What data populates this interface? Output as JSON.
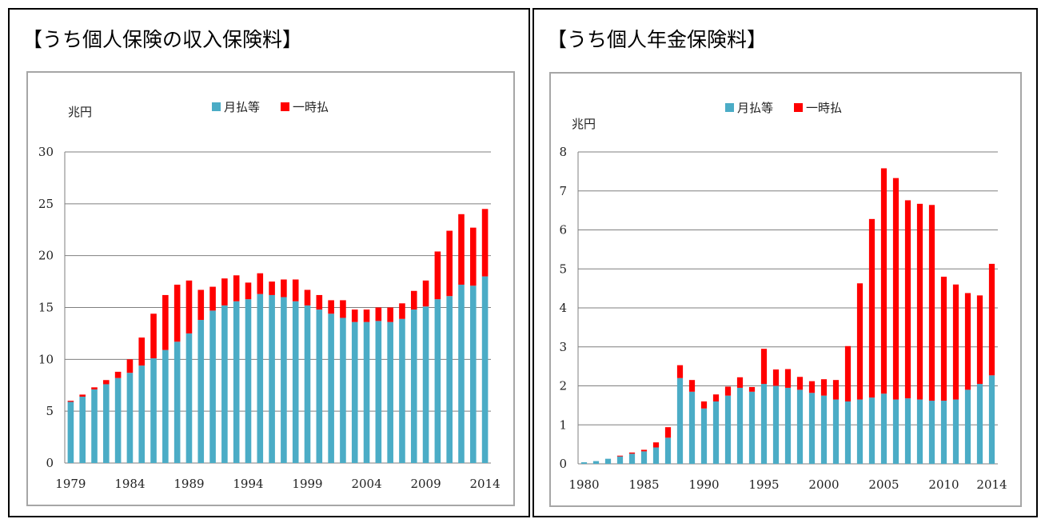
{
  "colors": {
    "monthly": "#4bacc6",
    "lump": "#ff0000",
    "grid": "#7f7f7f",
    "axis": "#7f7f7f"
  },
  "charts": [
    {
      "title": "【うち個人保険の収入保険料】",
      "unit": "兆円"
    },
    {
      "title": "【うち個人年金保険料】",
      "unit": "兆円"
    }
  ],
  "chart_data": [
    {
      "type": "bar",
      "stacked": true,
      "title": "【うち個人保険の収入保険料】",
      "ylabel": "兆円",
      "legend": [
        "月払等",
        "一時払"
      ],
      "legend_position": "top",
      "ylim": [
        0,
        30
      ],
      "yticks": [
        0,
        5,
        10,
        15,
        20,
        25,
        30
      ],
      "xticks": [
        "1979",
        "1984",
        "1989",
        "1994",
        "1999",
        "2004",
        "2009",
        "2014"
      ],
      "categories": [
        1979,
        1980,
        1981,
        1982,
        1983,
        1984,
        1985,
        1986,
        1987,
        1988,
        1989,
        1990,
        1991,
        1992,
        1993,
        1994,
        1995,
        1996,
        1997,
        1998,
        1999,
        2000,
        2001,
        2002,
        2003,
        2004,
        2005,
        2006,
        2007,
        2008,
        2009,
        2010,
        2011,
        2012,
        2013,
        2014
      ],
      "series": [
        {
          "name": "月払等",
          "values": [
            5.9,
            6.4,
            7.1,
            7.6,
            8.2,
            8.7,
            9.4,
            10.1,
            10.9,
            11.7,
            12.5,
            13.8,
            14.7,
            15.2,
            15.6,
            15.8,
            16.3,
            16.2,
            16.0,
            15.6,
            15.2,
            14.8,
            14.4,
            14.0,
            13.6,
            13.6,
            13.7,
            13.6,
            13.9,
            14.8,
            15.1,
            15.8,
            16.1,
            17.2,
            17.1,
            18.0
          ]
        },
        {
          "name": "一時払",
          "values": [
            0.1,
            0.2,
            0.2,
            0.4,
            0.6,
            1.3,
            2.7,
            4.3,
            5.3,
            5.5,
            5.1,
            2.9,
            2.3,
            2.6,
            2.5,
            1.6,
            2.0,
            1.3,
            1.7,
            2.1,
            1.5,
            1.4,
            1.3,
            1.7,
            1.2,
            1.2,
            1.3,
            1.4,
            1.5,
            1.8,
            2.5,
            4.6,
            6.3,
            6.8,
            5.6,
            6.5
          ]
        }
      ]
    },
    {
      "type": "bar",
      "stacked": true,
      "title": "【うち個人年金保険料】",
      "ylabel": "兆円",
      "legend": [
        "月払等",
        "一時払"
      ],
      "legend_position": "top",
      "ylim": [
        0,
        8
      ],
      "yticks": [
        0,
        1,
        2,
        3,
        4,
        5,
        6,
        7,
        8
      ],
      "xticks": [
        "1980",
        "1985",
        "1990",
        "1995",
        "2000",
        "2005",
        "2010",
        "2014"
      ],
      "categories": [
        1980,
        1981,
        1982,
        1983,
        1984,
        1985,
        1986,
        1987,
        1988,
        1989,
        1990,
        1991,
        1992,
        1993,
        1994,
        1995,
        1996,
        1997,
        1998,
        1999,
        2000,
        2001,
        2002,
        2003,
        2004,
        2005,
        2006,
        2007,
        2008,
        2009,
        2010,
        2011,
        2012,
        2013,
        2014
      ],
      "series": [
        {
          "name": "月払等",
          "values": [
            0.04,
            0.07,
            0.13,
            0.19,
            0.26,
            0.32,
            0.42,
            0.67,
            2.2,
            1.85,
            1.42,
            1.6,
            1.75,
            1.95,
            1.85,
            2.05,
            2.0,
            1.95,
            1.9,
            1.82,
            1.75,
            1.65,
            1.6,
            1.65,
            1.7,
            1.8,
            1.65,
            1.68,
            1.65,
            1.62,
            1.62,
            1.65,
            1.9,
            2.05,
            2.27
          ]
        },
        {
          "name": "一時払",
          "values": [
            0.0,
            0.0,
            0.0,
            0.02,
            0.03,
            0.04,
            0.13,
            0.27,
            0.33,
            0.3,
            0.18,
            0.18,
            0.23,
            0.27,
            0.12,
            0.9,
            0.42,
            0.48,
            0.33,
            0.3,
            0.42,
            0.5,
            1.42,
            2.98,
            4.58,
            5.78,
            5.68,
            5.08,
            5.02,
            5.02,
            3.18,
            2.95,
            2.48,
            2.27,
            2.86
          ]
        }
      ]
    }
  ]
}
